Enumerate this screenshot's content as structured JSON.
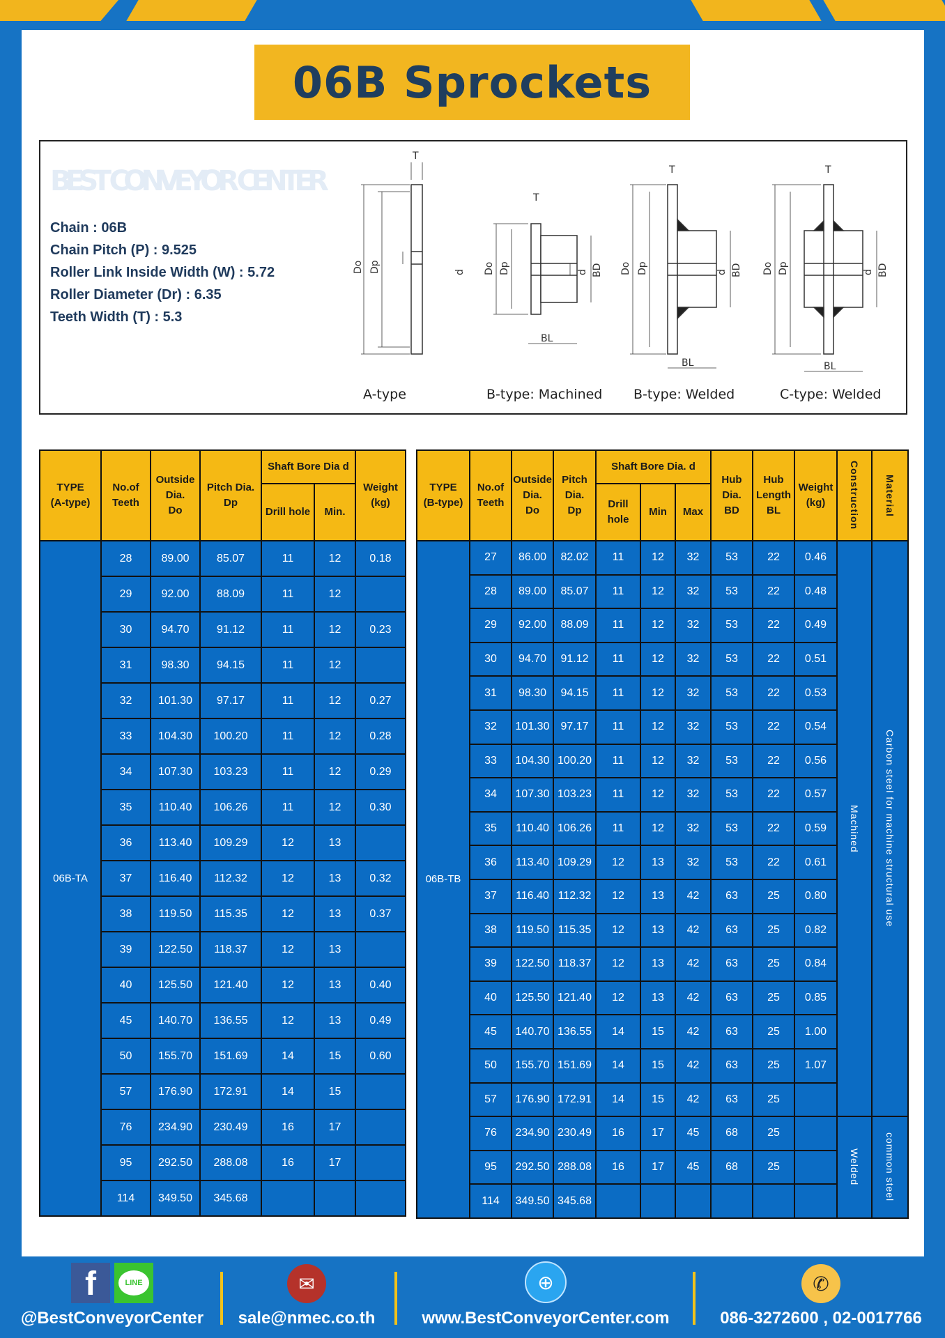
{
  "title": "06B Sprockets",
  "specs": [
    "Chain  : 06B",
    "Chain Pitch (P)  :  9.525",
    "Roller Link Inside Width (W)  :  5.72",
    "Roller Diameter (Dr)  : 6.35",
    "Teeth Width (T)  :  5.3"
  ],
  "diagram": {
    "labels": [
      "A-type",
      "B-type: Machined",
      "B-type: Welded",
      "C-type: Welded"
    ],
    "dims": {
      "T": "T",
      "Do": "Do",
      "Dp": "Dp",
      "d": "d",
      "BD": "BD",
      "BL": "BL"
    },
    "watermark": "BEST CONVEYOR CENTER"
  },
  "table_a": {
    "headers": {
      "type": [
        "TYPE",
        "(A-type)"
      ],
      "teeth": [
        "No.of",
        "Teeth"
      ],
      "do": [
        "Outside",
        "Dia.",
        "Do"
      ],
      "dp": [
        "Pitch Dia.",
        "Dp"
      ],
      "bore": "Shaft Bore Dia d",
      "drill": "Drill hole",
      "min": "Min.",
      "weight": [
        "Weight",
        "(kg)"
      ]
    },
    "type_value": "06B-TA",
    "rows": [
      [
        "28",
        "89.00",
        "85.07",
        "11",
        "12",
        "0.18"
      ],
      [
        "29",
        "92.00",
        "88.09",
        "11",
        "12",
        ""
      ],
      [
        "30",
        "94.70",
        "91.12",
        "11",
        "12",
        "0.23"
      ],
      [
        "31",
        "98.30",
        "94.15",
        "11",
        "12",
        ""
      ],
      [
        "32",
        "101.30",
        "97.17",
        "11",
        "12",
        "0.27"
      ],
      [
        "33",
        "104.30",
        "100.20",
        "11",
        "12",
        "0.28"
      ],
      [
        "34",
        "107.30",
        "103.23",
        "11",
        "12",
        "0.29"
      ],
      [
        "35",
        "110.40",
        "106.26",
        "11",
        "12",
        "0.30"
      ],
      [
        "36",
        "113.40",
        "109.29",
        "12",
        "13",
        ""
      ],
      [
        "37",
        "116.40",
        "112.32",
        "12",
        "13",
        "0.32"
      ],
      [
        "38",
        "119.50",
        "115.35",
        "12",
        "13",
        "0.37"
      ],
      [
        "39",
        "122.50",
        "118.37",
        "12",
        "13",
        ""
      ],
      [
        "40",
        "125.50",
        "121.40",
        "12",
        "13",
        "0.40"
      ],
      [
        "45",
        "140.70",
        "136.55",
        "12",
        "13",
        "0.49"
      ],
      [
        "50",
        "155.70",
        "151.69",
        "14",
        "15",
        "0.60"
      ],
      [
        "57",
        "176.90",
        "172.91",
        "14",
        "15",
        ""
      ],
      [
        "76",
        "234.90",
        "230.49",
        "16",
        "17",
        ""
      ],
      [
        "95",
        "292.50",
        "288.08",
        "16",
        "17",
        ""
      ],
      [
        "114",
        "349.50",
        "345.68",
        "",
        "",
        ""
      ]
    ]
  },
  "table_b": {
    "headers": {
      "type": [
        "TYPE",
        "(B-type)"
      ],
      "teeth": [
        "No.of",
        "Teeth"
      ],
      "do": [
        "Outside",
        "Dia.",
        "Do"
      ],
      "dp": [
        "Pitch",
        "Dia.",
        "Dp"
      ],
      "bore": "Shaft Bore Dia. d",
      "drill": "Drill hole",
      "min": "Min",
      "max": "Max",
      "bd": [
        "Hub",
        "Dia.",
        "BD"
      ],
      "bl": [
        "Hub",
        "Length",
        "BL"
      ],
      "weight": [
        "Weight",
        "(kg)"
      ],
      "construction": "Construction",
      "material": "Material"
    },
    "type_value": "06B-TB",
    "construction": [
      "Machined",
      "Welded"
    ],
    "material": [
      "Carbon steel for machine structural use",
      "common steel"
    ],
    "rows": [
      [
        "27",
        "86.00",
        "82.02",
        "11",
        "12",
        "32",
        "53",
        "22",
        "0.46"
      ],
      [
        "28",
        "89.00",
        "85.07",
        "11",
        "12",
        "32",
        "53",
        "22",
        "0.48"
      ],
      [
        "29",
        "92.00",
        "88.09",
        "11",
        "12",
        "32",
        "53",
        "22",
        "0.49"
      ],
      [
        "30",
        "94.70",
        "91.12",
        "11",
        "12",
        "32",
        "53",
        "22",
        "0.51"
      ],
      [
        "31",
        "98.30",
        "94.15",
        "11",
        "12",
        "32",
        "53",
        "22",
        "0.53"
      ],
      [
        "32",
        "101.30",
        "97.17",
        "11",
        "12",
        "32",
        "53",
        "22",
        "0.54"
      ],
      [
        "33",
        "104.30",
        "100.20",
        "11",
        "12",
        "32",
        "53",
        "22",
        "0.56"
      ],
      [
        "34",
        "107.30",
        "103.23",
        "11",
        "12",
        "32",
        "53",
        "22",
        "0.57"
      ],
      [
        "35",
        "110.40",
        "106.26",
        "11",
        "12",
        "32",
        "53",
        "22",
        "0.59"
      ],
      [
        "36",
        "113.40",
        "109.29",
        "12",
        "13",
        "32",
        "53",
        "22",
        "0.61"
      ],
      [
        "37",
        "116.40",
        "112.32",
        "12",
        "13",
        "42",
        "63",
        "25",
        "0.80"
      ],
      [
        "38",
        "119.50",
        "115.35",
        "12",
        "13",
        "42",
        "63",
        "25",
        "0.82"
      ],
      [
        "39",
        "122.50",
        "118.37",
        "12",
        "13",
        "42",
        "63",
        "25",
        "0.84"
      ],
      [
        "40",
        "125.50",
        "121.40",
        "12",
        "13",
        "42",
        "63",
        "25",
        "0.85"
      ],
      [
        "45",
        "140.70",
        "136.55",
        "14",
        "15",
        "42",
        "63",
        "25",
        "1.00"
      ],
      [
        "50",
        "155.70",
        "151.69",
        "14",
        "15",
        "42",
        "63",
        "25",
        "1.07"
      ],
      [
        "57",
        "176.90",
        "172.91",
        "14",
        "15",
        "42",
        "63",
        "25",
        ""
      ],
      [
        "76",
        "234.90",
        "230.49",
        "16",
        "17",
        "45",
        "68",
        "25",
        ""
      ],
      [
        "95",
        "292.50",
        "288.08",
        "16",
        "17",
        "45",
        "68",
        "25",
        ""
      ],
      [
        "114",
        "349.50",
        "345.68",
        "",
        "",
        "",
        "",
        "",
        ""
      ]
    ]
  },
  "footer": {
    "social": "@BestConveyorCenter",
    "line_label": "LINE",
    "email": "sale@nmec.co.th",
    "website": "www.BestConveyorCenter.com",
    "phone": "086-3272600 , 02-0017766"
  },
  "colors": {
    "blue": "#0b6cc4",
    "yellow": "#f5b914",
    "navy": "#1f3e5e"
  }
}
